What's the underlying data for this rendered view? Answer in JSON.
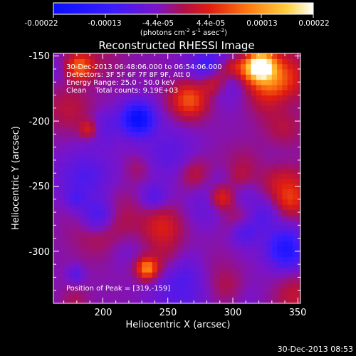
{
  "colorbar": {
    "ticks": [
      "-0.00022",
      "-0.00013",
      "-4.4e-05",
      "4.4e-05",
      "0.00013",
      "0.00022"
    ],
    "units": "(photons cm",
    "units_sup1": "-2",
    "units_mid": " s",
    "units_sup2": "-1",
    "units_end": " asec",
    "units_sup3": "-2",
    "units_close": ")"
  },
  "chart_data": {
    "type": "heatmap",
    "title": "Reconstructed RHESSI Image",
    "xlabel": "Heliocentric X (arcsec)",
    "ylabel": "Heliocentric Y (arcsec)",
    "xlim": [
      162,
      352
    ],
    "ylim": [
      -340,
      -148
    ],
    "x_ticks": [
      "200",
      "250",
      "300",
      "350"
    ],
    "y_ticks": [
      "-150",
      "-200",
      "-250",
      "-300"
    ],
    "color_range": [
      -0.00022,
      0.00022
    ],
    "colormap": "blue-purple-red-orange-yellow-white",
    "peak": [
      319,
      -159
    ],
    "annotations": [
      "30-Dec-2013 06:48:06.000 to 06:54:06.000",
      "Detectors: 3F 5F 6F 7F 8F 9F, Att 0",
      "Energy Range: 25.0 - 50.0 keV",
      "Clean    Total counts: 9.19E+03",
      "Position of Peak = [319,-159]"
    ]
  },
  "footer": {
    "timestamp": "30-Dec-2013 08:53"
  }
}
